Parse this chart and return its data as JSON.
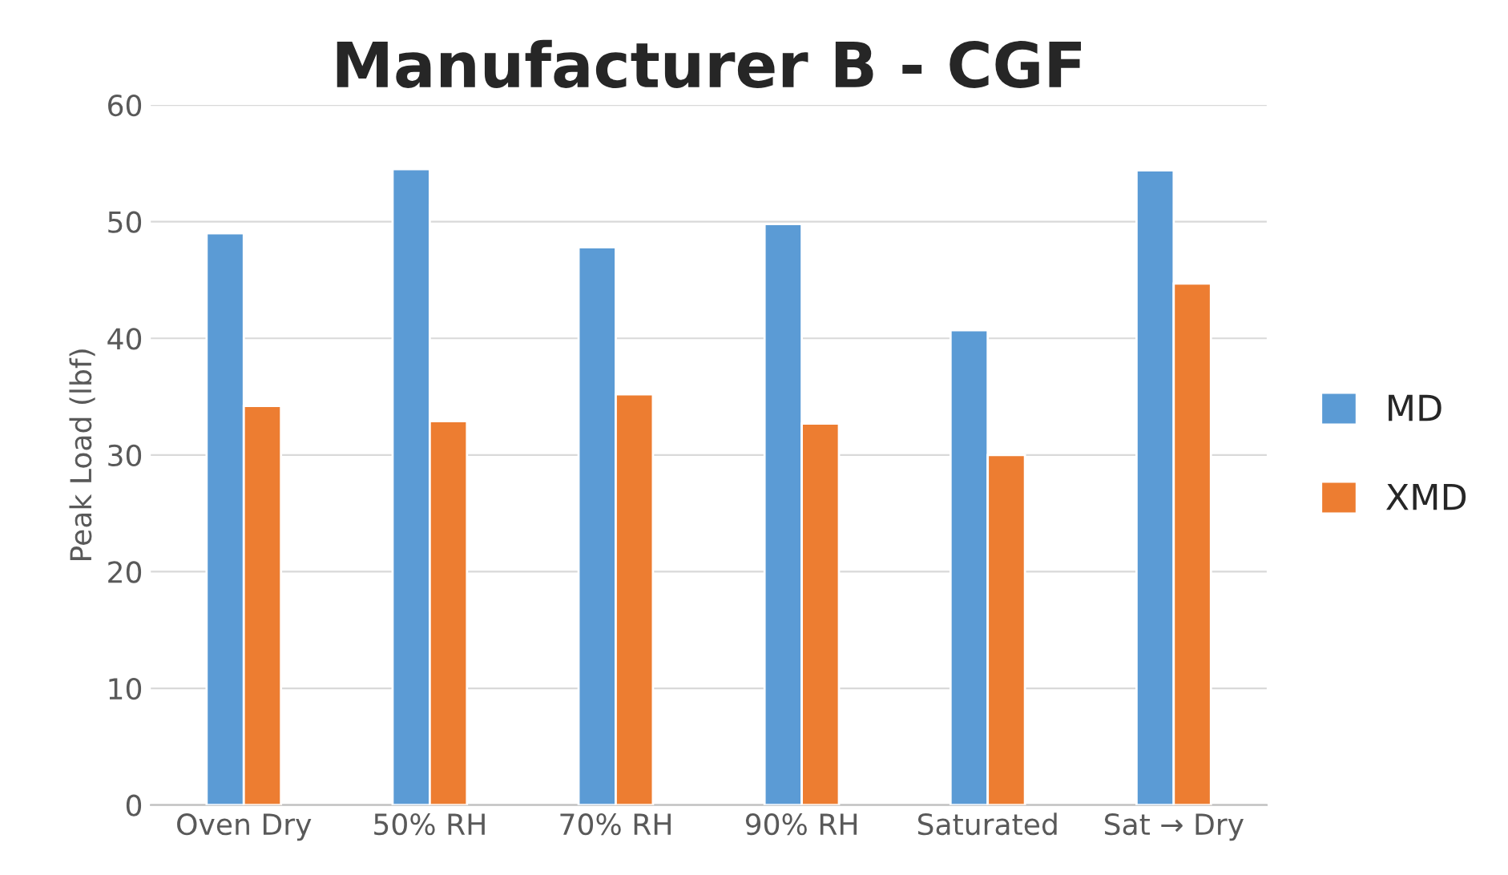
{
  "chart_data": {
    "type": "bar",
    "title": "Manufacturer B - CGF",
    "ylabel": "Peak Load (lbf)",
    "categories": [
      "Oven Dry",
      "50% RH",
      "70% RH",
      "90% RH",
      "Saturated",
      "Sat → Dry"
    ],
    "series": [
      {
        "name": "MD",
        "color": "#5b9bd5",
        "values": [
          49.0,
          54.5,
          47.8,
          49.8,
          40.7,
          54.4
        ]
      },
      {
        "name": "XMD",
        "color": "#ed7d31",
        "values": [
          34.2,
          32.9,
          35.2,
          32.7,
          30.0,
          44.7
        ]
      }
    ],
    "ylim": [
      0,
      60
    ],
    "yticks": [
      0,
      10,
      20,
      30,
      40,
      50,
      60
    ],
    "grid": "y",
    "legend": "right"
  }
}
